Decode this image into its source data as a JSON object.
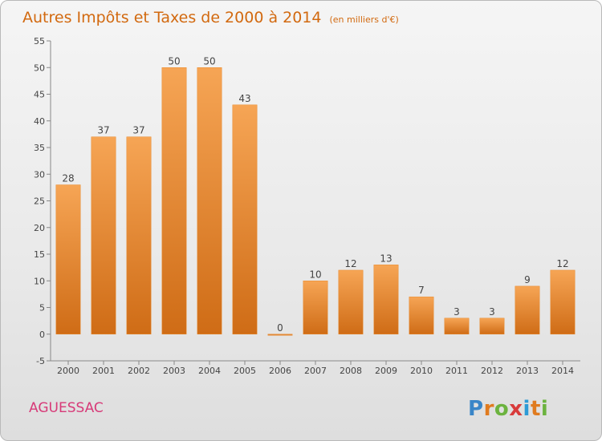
{
  "chart_data": {
    "type": "bar",
    "title": "Autres Impôts et Taxes de 2000 à 2014",
    "unit_note": "(en milliers d'€)",
    "categories": [
      "2000",
      "2001",
      "2002",
      "2003",
      "2004",
      "2005",
      "2006",
      "2007",
      "2008",
      "2009",
      "2010",
      "2011",
      "2012",
      "2013",
      "2014"
    ],
    "values": [
      28,
      37,
      37,
      50,
      50,
      43,
      0,
      10,
      12,
      13,
      7,
      3,
      3,
      9,
      12
    ],
    "ylim": [
      -5,
      55
    ],
    "yticks": [
      -5,
      0,
      5,
      10,
      15,
      20,
      25,
      30,
      35,
      40,
      45,
      50,
      55
    ],
    "grid": false,
    "bar_color": "#e88a2e",
    "bar_color_light": "#f6a555",
    "bar_color_dark": "#cf6c16",
    "title_color": "#d2690f"
  },
  "footer": {
    "place": "AGUESSAC",
    "place_color": "#d73a78"
  },
  "logo": {
    "text": "Proxiti",
    "letter_colors": [
      "#3a86c8",
      "#e07b1f",
      "#6cb33f",
      "#d83b3b",
      "#2e9bd6",
      "#e07b1f",
      "#6cb33f"
    ]
  }
}
